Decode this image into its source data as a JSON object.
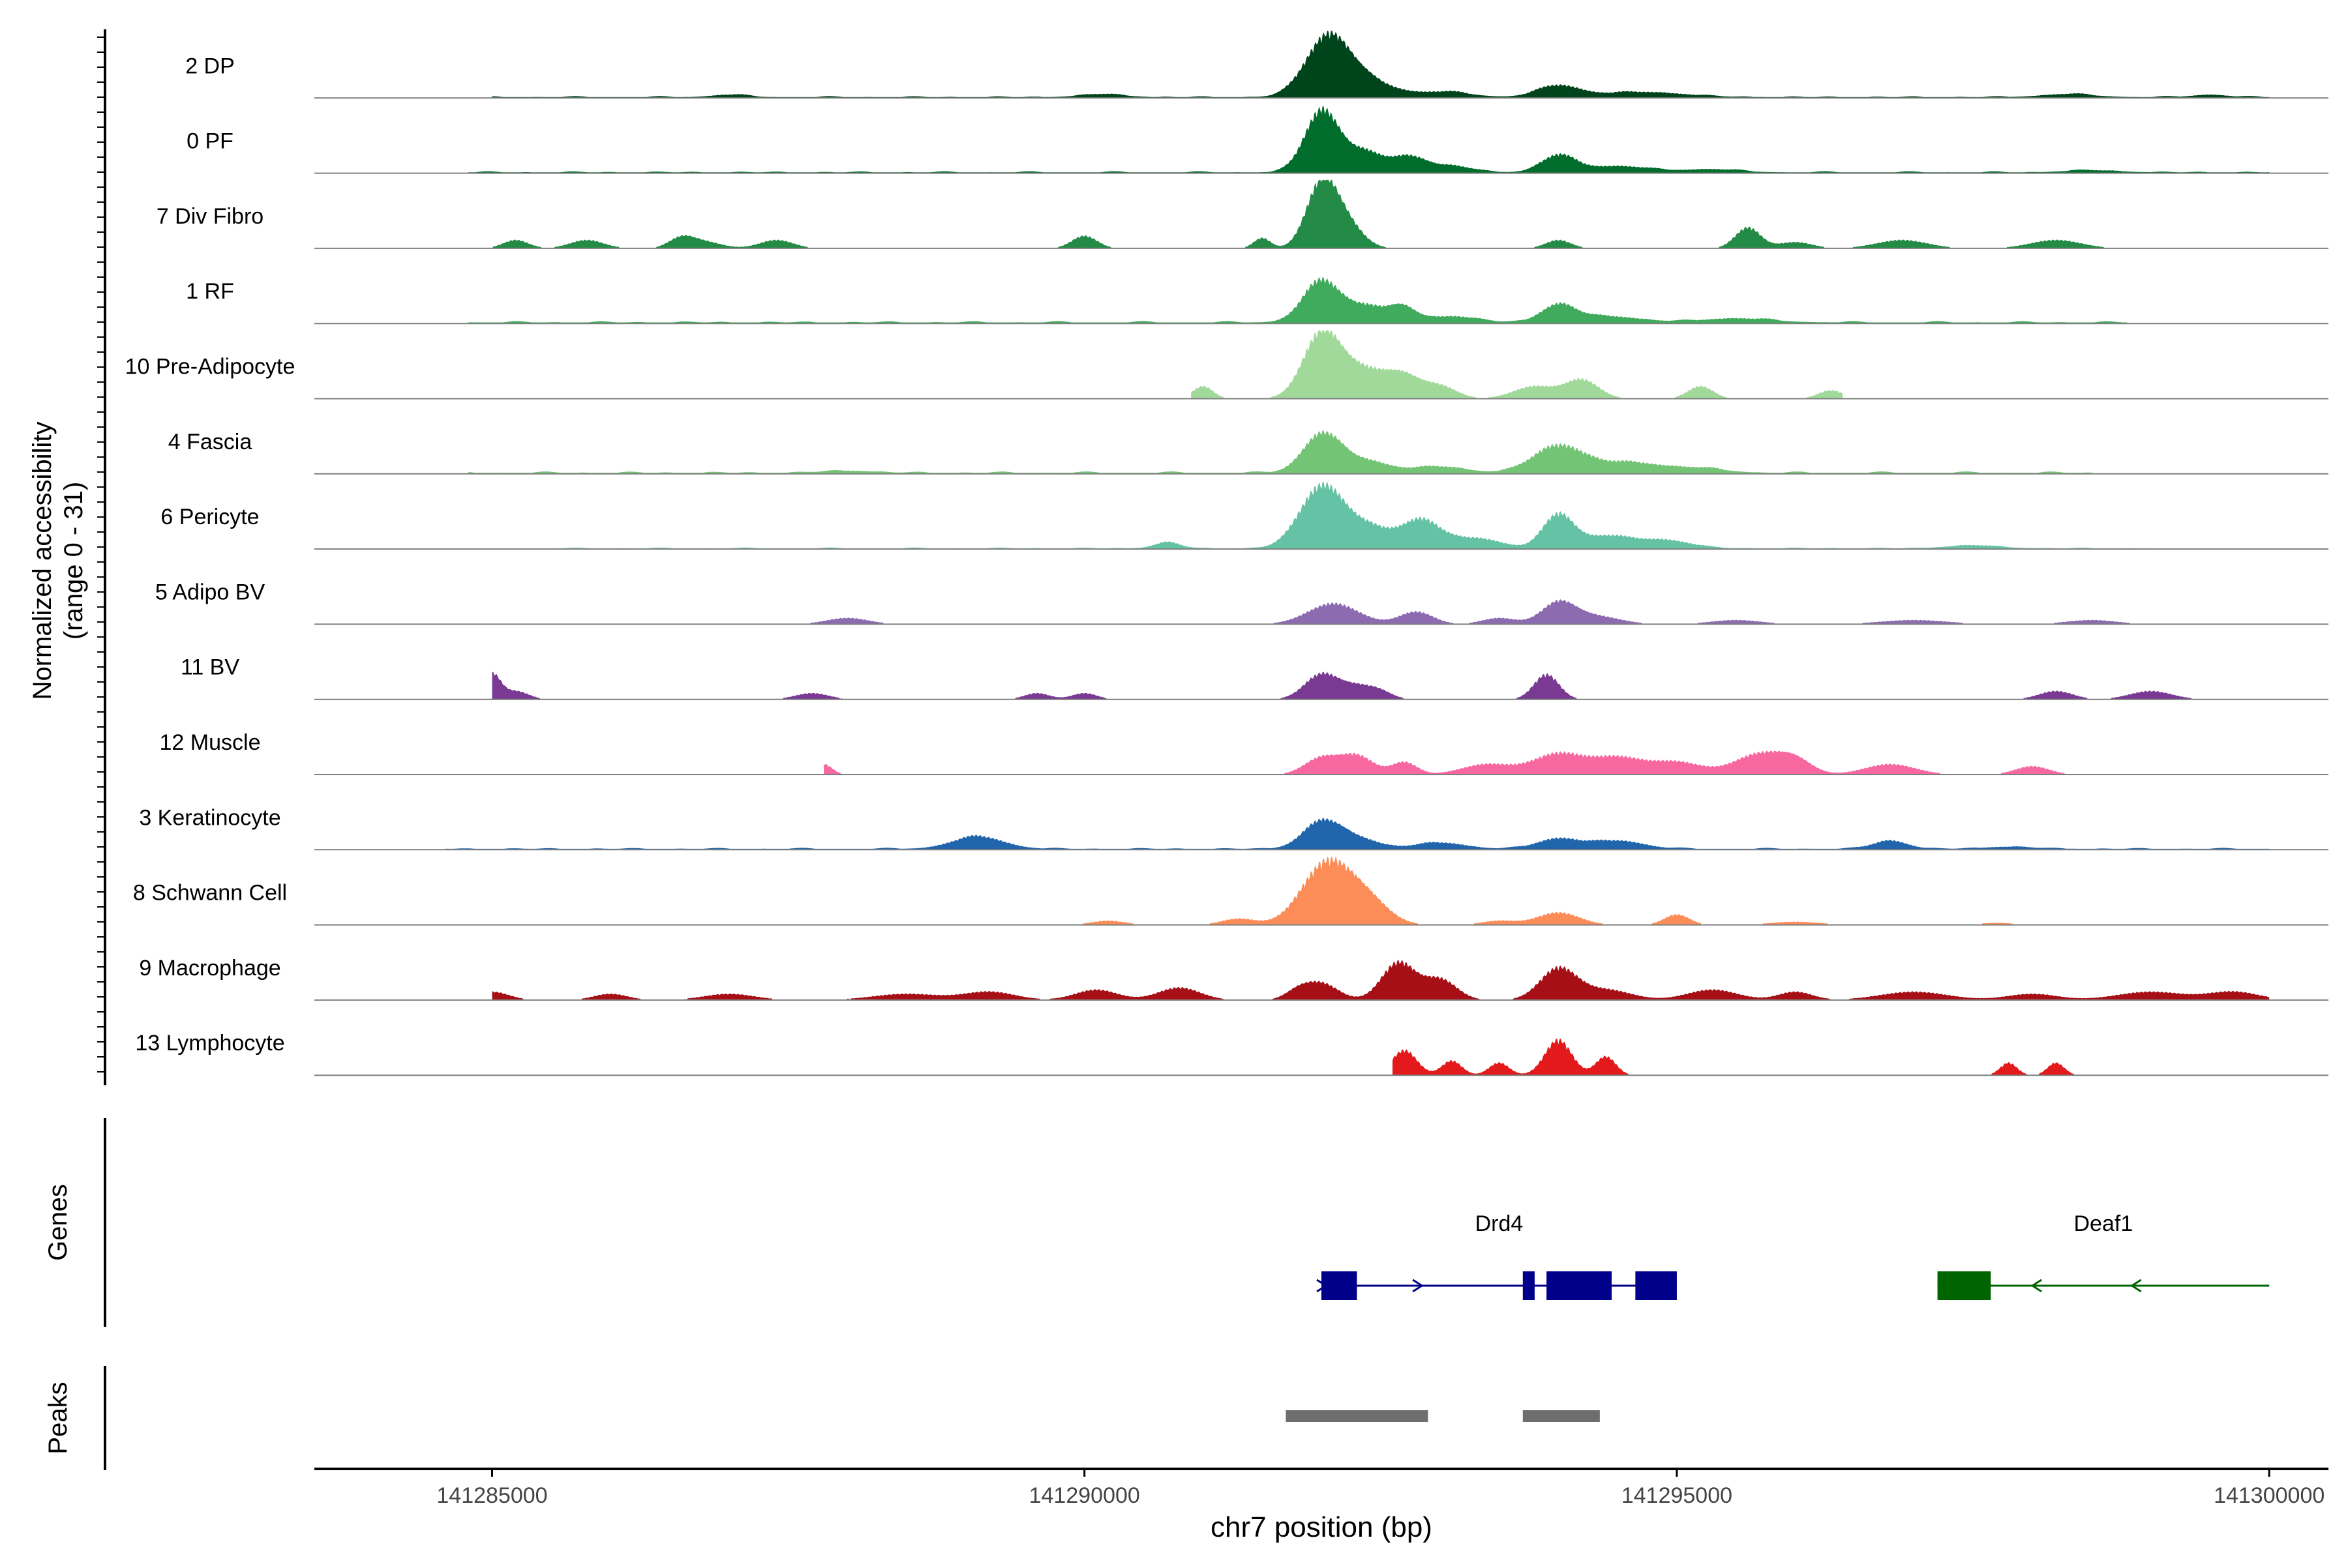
{
  "chart_data": {
    "type": "area",
    "title": "",
    "ylabel_line1": "Normalized accessibility",
    "ylabel_line2": "(range 0 - 31)",
    "xlabel": "chr7 position (bp)",
    "xlim": [
      141283500,
      141300500
    ],
    "ylim": [
      0,
      31
    ],
    "x_ticks": [
      141285000,
      141290000,
      141295000,
      141300000
    ],
    "x_tick_labels": [
      "141285000",
      "141290000",
      "141295000",
      "141300000"
    ],
    "tracks": [
      {
        "name": "2 DP",
        "color": "#00441b",
        "x_start": 141285000,
        "x_end": 141300000,
        "baseline": 0.4,
        "peaks": [
          [
            141292050,
            27,
            260
          ],
          [
            141292350,
            8,
            350
          ],
          [
            141293050,
            2.5,
            300
          ],
          [
            141294000,
            5.5,
            250
          ],
          [
            141294700,
            2.5,
            500
          ],
          [
            141298300,
            1.5,
            300
          ],
          [
            141299500,
            1.2,
            200
          ],
          [
            141290150,
            1.5,
            250
          ],
          [
            141287000,
            1.2,
            200
          ]
        ]
      },
      {
        "name": "0 PF",
        "color": "#006d2c",
        "x_start": 141284800,
        "x_end": 141300000,
        "baseline": 0.4,
        "peaks": [
          [
            141292000,
            29,
            200
          ],
          [
            141292350,
            10,
            250
          ],
          [
            141292750,
            7,
            200
          ],
          [
            141293100,
            3,
            250
          ],
          [
            141294000,
            8,
            200
          ],
          [
            141294500,
            3,
            400
          ],
          [
            141295300,
            1.5,
            300
          ],
          [
            141298500,
            1,
            300
          ]
        ]
      },
      {
        "name": "7 Div Fibro",
        "color": "#238b45",
        "x_start": 141285000,
        "x_end": 141299000,
        "baseline": 0,
        "peaks": [
          [
            141292000,
            30,
            180
          ],
          [
            141292200,
            12,
            200
          ],
          [
            141290000,
            6,
            150
          ],
          [
            141295600,
            10,
            150
          ],
          [
            141285200,
            4,
            150
          ],
          [
            141285800,
            4,
            200
          ],
          [
            141286600,
            5,
            150
          ],
          [
            141287400,
            4,
            200
          ],
          [
            141291500,
            5,
            100
          ],
          [
            141294000,
            4,
            150
          ],
          [
            141296000,
            3,
            200
          ],
          [
            141296900,
            4,
            300
          ],
          [
            141298200,
            4,
            300
          ],
          [
            141286800,
            3,
            200
          ]
        ]
      },
      {
        "name": "1 RF",
        "color": "#41ab5d",
        "x_start": 141284800,
        "x_end": 141298800,
        "baseline": 0.5,
        "peaks": [
          [
            141292000,
            20,
            220
          ],
          [
            141292400,
            8,
            250
          ],
          [
            141292700,
            6,
            150
          ],
          [
            141293100,
            3,
            300
          ],
          [
            141294000,
            8,
            200
          ],
          [
            141294400,
            3,
            400
          ],
          [
            141295500,
            2,
            400
          ]
        ]
      },
      {
        "name": "10 Pre-Adipocyte",
        "color": "#a1d99b",
        "x_start": 141290900,
        "x_end": 141296400,
        "baseline": 0,
        "peaks": [
          [
            141292000,
            30,
            220
          ],
          [
            141292350,
            14,
            300
          ],
          [
            141292700,
            9,
            200
          ],
          [
            141291000,
            6,
            120
          ],
          [
            141293000,
            6,
            200
          ],
          [
            141293800,
            6,
            250
          ],
          [
            141294200,
            9,
            200
          ],
          [
            141295200,
            6,
            150
          ],
          [
            141296300,
            4,
            150
          ]
        ]
      },
      {
        "name": "4 Fascia",
        "color": "#74c476",
        "x_start": 141284800,
        "x_end": 141298500,
        "baseline": 0.5,
        "peaks": [
          [
            141292000,
            18,
            220
          ],
          [
            141292350,
            6,
            300
          ],
          [
            141293000,
            3,
            300
          ],
          [
            141294000,
            13,
            300
          ],
          [
            141294600,
            5,
            400
          ],
          [
            141295200,
            2,
            300
          ],
          [
            141288000,
            1,
            300
          ]
        ]
      },
      {
        "name": "6 Pericyte",
        "color": "#66c2a4",
        "x_start": 141285500,
        "x_end": 141299000,
        "baseline": 0.3,
        "peaks": [
          [
            141292000,
            29,
            260
          ],
          [
            141292400,
            10,
            300
          ],
          [
            141292850,
            13,
            220
          ],
          [
            141293300,
            5,
            300
          ],
          [
            141294000,
            16,
            180
          ],
          [
            141294400,
            6,
            300
          ],
          [
            141294900,
            4,
            300
          ],
          [
            141290700,
            3,
            150
          ],
          [
            141297500,
            1.5,
            300
          ]
        ]
      },
      {
        "name": "5 Adipo BV",
        "color": "#8c6bb1",
        "x_start": 141286500,
        "x_end": 141299000,
        "baseline": 0,
        "peaks": [
          [
            141292100,
            10,
            300
          ],
          [
            141292800,
            6,
            200
          ],
          [
            141294000,
            10,
            200
          ],
          [
            141294300,
            4,
            300
          ],
          [
            141288000,
            3,
            250
          ],
          [
            141293500,
            3,
            200
          ],
          [
            141295500,
            2,
            300
          ],
          [
            141297000,
            2,
            400
          ],
          [
            141298500,
            2,
            300
          ]
        ]
      },
      {
        "name": "11 BV",
        "color": "#7a3a93",
        "x_start": 141285000,
        "x_end": 141299500,
        "baseline": 0,
        "peaks": [
          [
            141285000,
            12,
            100
          ],
          [
            141285200,
            4,
            150
          ],
          [
            141287700,
            3,
            200
          ],
          [
            141289600,
            3,
            150
          ],
          [
            141290000,
            3,
            150
          ],
          [
            141292000,
            12,
            200
          ],
          [
            141292300,
            6,
            200
          ],
          [
            141292500,
            3,
            150
          ],
          [
            141293900,
            12,
            150
          ],
          [
            141298200,
            4,
            200
          ],
          [
            141299000,
            4,
            250
          ]
        ]
      },
      {
        "name": "12 Muscle",
        "color": "#f768a1",
        "x_start": 141287800,
        "x_end": 141298500,
        "baseline": 0,
        "peaks": [
          [
            141287800,
            5,
            100
          ],
          [
            141292000,
            8,
            200
          ],
          [
            141292300,
            9,
            200
          ],
          [
            141292700,
            6,
            150
          ],
          [
            141293400,
            5,
            300
          ],
          [
            141294000,
            10,
            300
          ],
          [
            141294500,
            8,
            300
          ],
          [
            141295000,
            6,
            300
          ],
          [
            141295700,
            10,
            300
          ],
          [
            141296000,
            6,
            200
          ],
          [
            141296800,
            5,
            300
          ],
          [
            141298000,
            4,
            200
          ]
        ]
      },
      {
        "name": "3 Keratinocyte",
        "color": "#2166ac",
        "x_start": 141284600,
        "x_end": 141300000,
        "baseline": 0.4,
        "peaks": [
          [
            141292000,
            13,
            220
          ],
          [
            141292300,
            5,
            250
          ],
          [
            141294000,
            5,
            250
          ],
          [
            141294500,
            4,
            300
          ],
          [
            141289100,
            6,
            300
          ],
          [
            141293000,
            3,
            300
          ],
          [
            141296800,
            4,
            200
          ],
          [
            141297800,
            1,
            300
          ]
        ]
      },
      {
        "name": "8 Schwann Cell",
        "color": "#fc8d59",
        "x_start": 141289800,
        "x_end": 141298000,
        "baseline": 0,
        "peaks": [
          [
            141292050,
            30,
            300
          ],
          [
            141292400,
            10,
            250
          ],
          [
            141291300,
            3,
            200
          ],
          [
            141294000,
            6,
            250
          ],
          [
            141295000,
            5,
            150
          ],
          [
            141290200,
            2,
            200
          ],
          [
            141293500,
            2,
            200
          ],
          [
            141296000,
            1.5,
            300
          ],
          [
            141297700,
            1,
            200
          ]
        ]
      },
      {
        "name": "9 Macrophage",
        "color": "#a50f15",
        "x_start": 141285000,
        "x_end": 141300000,
        "baseline": 0,
        "peaks": [
          [
            141292650,
            18,
            200
          ],
          [
            141293000,
            10,
            200
          ],
          [
            141294000,
            15,
            220
          ],
          [
            141294400,
            5,
            300
          ],
          [
            141292000,
            8,
            200
          ],
          [
            141291800,
            4,
            150
          ],
          [
            141290800,
            6,
            250
          ],
          [
            141290100,
            5,
            250
          ],
          [
            141285000,
            4,
            200
          ],
          [
            141286000,
            3,
            200
          ],
          [
            141287000,
            3,
            300
          ],
          [
            141288500,
            3,
            400
          ],
          [
            141289200,
            4,
            300
          ],
          [
            141295300,
            5,
            300
          ],
          [
            141296000,
            4,
            200
          ],
          [
            141297000,
            4,
            400
          ],
          [
            141298000,
            3,
            300
          ],
          [
            141299000,
            4,
            400
          ],
          [
            141299700,
            4,
            300
          ]
        ]
      },
      {
        "name": "13 Lymphocyte",
        "color": "#e31a1c",
        "x_start": 141292600,
        "x_end": 141298500,
        "baseline": 0,
        "peaks": [
          [
            141292700,
            12,
            150
          ],
          [
            141293100,
            7,
            120
          ],
          [
            141293500,
            6,
            120
          ],
          [
            141294000,
            17,
            160
          ],
          [
            141294400,
            9,
            120
          ],
          [
            141297800,
            6,
            100
          ],
          [
            141298200,
            6,
            100
          ]
        ]
      }
    ],
    "genes_label": "Genes",
    "peaks_label": "Peaks",
    "genes": [
      {
        "name": "Drd4",
        "strand": "+",
        "color": "#00008b",
        "start": 141292000,
        "end": 141295000,
        "exons": [
          [
            141292000,
            141292300
          ],
          [
            141293700,
            141293800
          ],
          [
            141293900,
            141294450
          ],
          [
            141294650,
            141295000
          ]
        ]
      },
      {
        "name": "Deaf1",
        "strand": "-",
        "color": "#006400",
        "start": 141297200,
        "end": 141300000,
        "exons": [
          [
            141297200,
            141297650
          ]
        ]
      }
    ],
    "peak_regions": [
      [
        141291700,
        141292900
      ],
      [
        141293700,
        141294350
      ]
    ]
  }
}
